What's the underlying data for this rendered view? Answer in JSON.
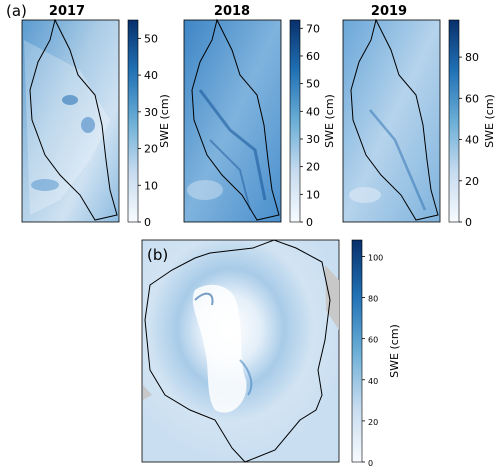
{
  "panel_labels": [
    "(a)",
    "(b)"
  ],
  "chart_data": [
    {
      "type": "heatmap",
      "title": "2017",
      "colorbar": {
        "label": "SWE (cm)",
        "ticks": [
          0,
          10,
          20,
          30,
          40,
          50
        ],
        "range": [
          0,
          55
        ]
      }
    },
    {
      "type": "heatmap",
      "title": "2018",
      "colorbar": {
        "label": "SWE (cm)",
        "ticks": [
          0,
          10,
          20,
          30,
          40,
          50,
          60,
          70
        ],
        "range": [
          0,
          73
        ]
      }
    },
    {
      "type": "heatmap",
      "title": "2019",
      "colorbar": {
        "label": "SWE (cm)",
        "ticks": [
          0,
          20,
          40,
          60,
          80
        ],
        "range": [
          0,
          98
        ]
      }
    },
    {
      "type": "heatmap",
      "title": "",
      "colorbar": {
        "label": "SWE (cm)",
        "ticks": [
          0,
          20,
          40,
          60,
          80,
          100
        ],
        "range": [
          0,
          108
        ]
      }
    }
  ],
  "colors": {
    "cmap_low": "#f7fbff",
    "cmap_high": "#08306b",
    "terrain": "#c8c8c8"
  }
}
